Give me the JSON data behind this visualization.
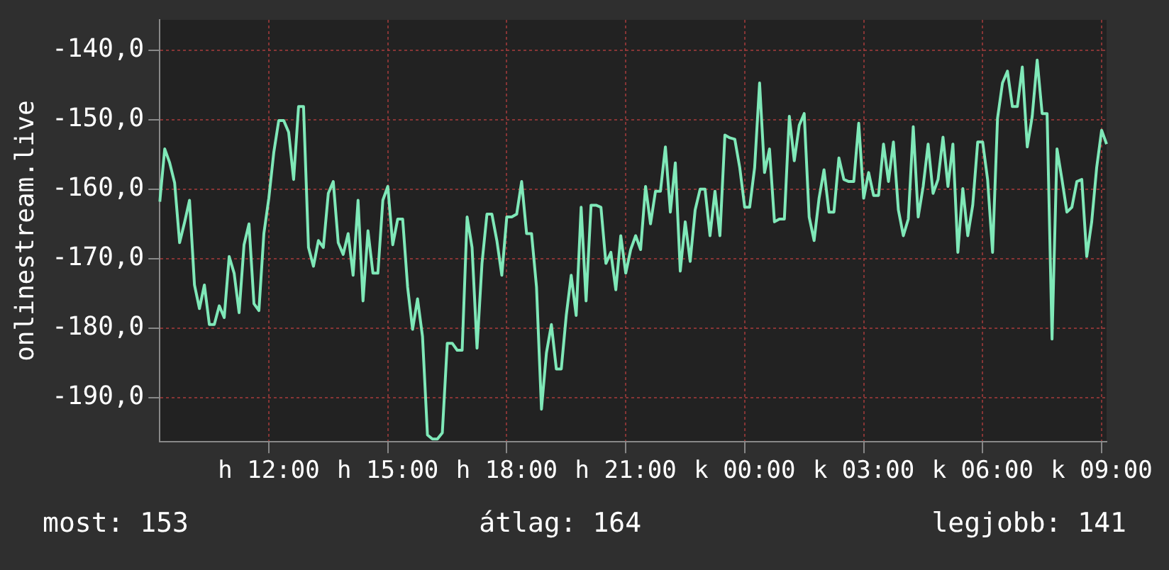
{
  "chart_data": {
    "type": "line",
    "ylabel": "onlinestream.live",
    "categories": [
      null,
      null,
      null,
      null,
      null,
      null,
      null,
      null,
      null,
      null,
      null,
      null,
      null,
      null,
      null,
      null,
      null,
      null,
      null,
      null,
      null,
      null,
      "h 12:00",
      null,
      null,
      null,
      null,
      null,
      null,
      null,
      null,
      null,
      null,
      null,
      null,
      null,
      null,
      null,
      null,
      null,
      null,
      null,
      null,
      null,
      null,
      null,
      "h 15:00",
      null,
      null,
      null,
      null,
      null,
      null,
      null,
      null,
      null,
      null,
      null,
      null,
      null,
      null,
      null,
      null,
      null,
      null,
      null,
      null,
      null,
      null,
      null,
      "h 18:00",
      null,
      null,
      null,
      null,
      null,
      null,
      null,
      null,
      null,
      null,
      null,
      null,
      null,
      null,
      null,
      null,
      null,
      null,
      null,
      null,
      null,
      null,
      null,
      "h 21:00",
      null,
      null,
      null,
      null,
      null,
      null,
      null,
      null,
      null,
      null,
      null,
      null,
      null,
      null,
      null,
      null,
      null,
      null,
      null,
      null,
      null,
      null,
      null,
      "k 00:00",
      null,
      null,
      null,
      null,
      null,
      null,
      null,
      null,
      null,
      null,
      null,
      null,
      null,
      null,
      null,
      null,
      null,
      null,
      null,
      null,
      null,
      null,
      null,
      "k 03:00",
      null,
      null,
      null,
      null,
      null,
      null,
      null,
      null,
      null,
      null,
      null,
      null,
      null,
      null,
      null,
      null,
      null,
      null,
      null,
      null,
      null,
      null,
      null,
      "k 06:00",
      null,
      null,
      null,
      null,
      null,
      null,
      null,
      null,
      null,
      null,
      null,
      null,
      null,
      null,
      null,
      null,
      null,
      null,
      null,
      null,
      null,
      null,
      null,
      "k 09:00",
      null
    ],
    "series": [
      {
        "color": "#7fe8b8",
        "values": [
          -161.8,
          -154.2,
          -156.2,
          -159.1,
          -167.7,
          -164.8,
          -161.6,
          -173.8,
          -177.2,
          -173.8,
          -179.5,
          -179.5,
          -176.8,
          -178.5,
          -169.7,
          -172.1,
          -177.8,
          -168.0,
          -165.0,
          -176.5,
          -177.5,
          -166.4,
          -161.3,
          -154.7,
          -150.1,
          -150.1,
          -151.8,
          -158.6,
          -148.1,
          -148.1,
          -168.4,
          -171.1,
          -167.4,
          -168.4,
          -160.6,
          -158.9,
          -167.7,
          -169.4,
          -166.4,
          -172.4,
          -161.6,
          -176.1,
          -166.0,
          -172.1,
          -172.1,
          -161.6,
          -159.6,
          -168.0,
          -164.3,
          -164.3,
          -174.1,
          -180.2,
          -175.8,
          -181.2,
          -195.4,
          -196.0,
          -196.0,
          -195.1,
          -182.2,
          -182.2,
          -183.2,
          -183.2,
          -164.0,
          -168.4,
          -182.9,
          -170.7,
          -163.6,
          -163.6,
          -167.4,
          -172.4,
          -164.0,
          -164.0,
          -163.6,
          -158.9,
          -166.4,
          -166.4,
          -174.1,
          -191.7,
          -183.6,
          -179.5,
          -185.9,
          -185.9,
          -178.2,
          -172.4,
          -178.2,
          -162.6,
          -176.1,
          -162.3,
          -162.3,
          -162.6,
          -170.7,
          -169.1,
          -174.5,
          -166.7,
          -172.1,
          -168.7,
          -166.7,
          -168.7,
          -159.6,
          -165.0,
          -160.3,
          -160.3,
          -153.9,
          -163.3,
          -156.2,
          -171.8,
          -164.7,
          -170.4,
          -163.0,
          -160.0,
          -160.0,
          -166.7,
          -160.3,
          -166.7,
          -152.2,
          -152.6,
          -152.8,
          -156.9,
          -162.6,
          -162.6,
          -156.9,
          -144.7,
          -157.6,
          -154.2,
          -164.7,
          -164.3,
          -164.3,
          -149.5,
          -155.9,
          -150.8,
          -149.1,
          -164.0,
          -167.4,
          -161.3,
          -157.2,
          -163.3,
          -163.3,
          -155.5,
          -158.6,
          -158.9,
          -158.9,
          -150.5,
          -161.3,
          -157.6,
          -160.9,
          -160.9,
          -153.5,
          -158.9,
          -153.2,
          -163.0,
          -166.7,
          -164.3,
          -151.0,
          -164.0,
          -159.6,
          -153.5,
          -160.6,
          -158.6,
          -152.5,
          -159.6,
          -153.5,
          -169.1,
          -159.9,
          -166.7,
          -162.3,
          -153.2,
          -153.2,
          -158.6,
          -169.1,
          -149.8,
          -144.7,
          -143.0,
          -148.1,
          -148.1,
          -142.4,
          -153.9,
          -149.5,
          -141.4,
          -149.1,
          -149.1,
          -181.6,
          -154.2,
          -158.6,
          -163.3,
          -162.6,
          -158.9,
          -158.6,
          -169.7,
          -164.7,
          -156.9,
          -151.5,
          -153.5
        ]
      }
    ],
    "ylim": [
      -196.4,
      -135.6
    ],
    "yticks": [
      {
        "value": -190,
        "label": "-190,0"
      },
      {
        "value": -180,
        "label": "-180,0"
      },
      {
        "value": -170,
        "label": "-170,0"
      },
      {
        "value": -160,
        "label": "-160,0"
      },
      {
        "value": -150,
        "label": "-150,0"
      },
      {
        "value": -140,
        "label": "-140,0"
      }
    ],
    "grid": true,
    "legend": false,
    "marker": "none",
    "line_style": "solid",
    "annotations": [
      "most: 153",
      "átlag: 164",
      "legjobb: 141"
    ]
  }
}
